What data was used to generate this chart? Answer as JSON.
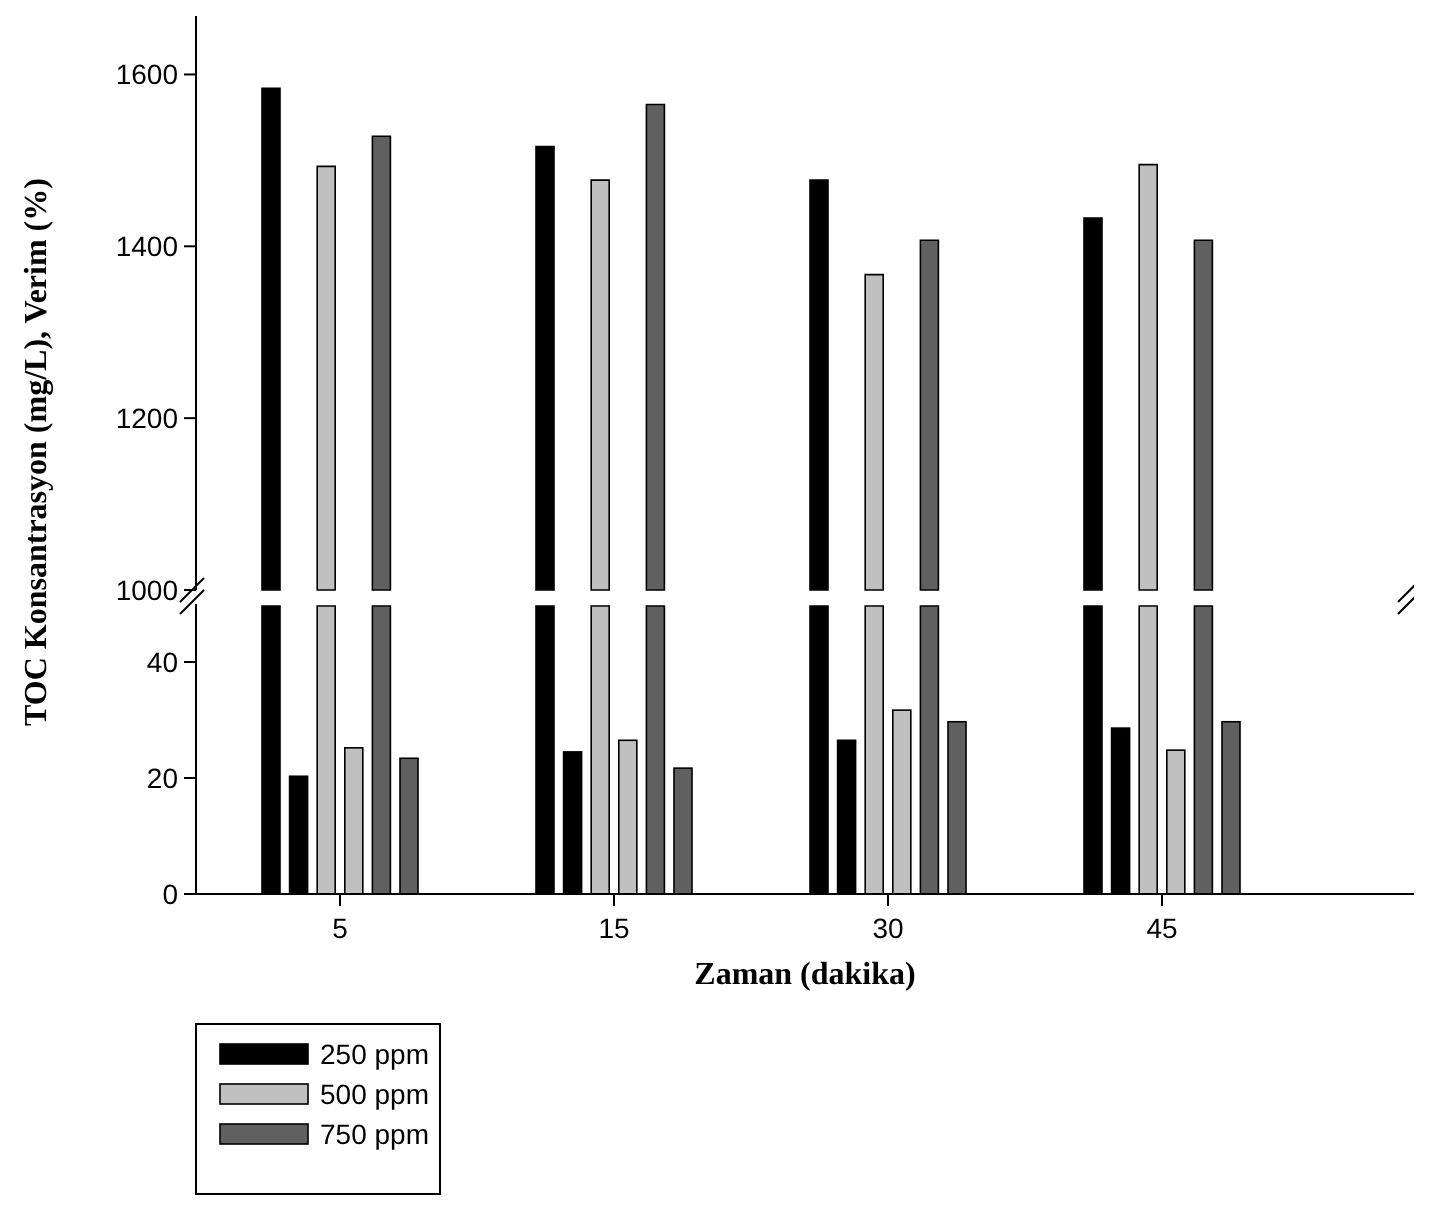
{
  "chart_data": [
    {
      "type": "bar",
      "ylabel": "TOC Konsantrasyon (mg/L), Verim (%)",
      "categories": [
        "5",
        "15",
        "30",
        "45"
      ],
      "ylim": [
        1000,
        1675
      ],
      "yticks": [
        1000,
        1200,
        1400,
        1600
      ],
      "tick_labels": "y",
      "legend": "bottom left",
      "series": [
        {
          "name": "250 ppm",
          "color": "#000000",
          "values": [
            1584,
            1516,
            1477,
            1433
          ]
        },
        {
          "name": "500 ppm",
          "color": "#c0c0c0",
          "values": [
            1493,
            1477,
            1367,
            1495
          ]
        },
        {
          "name": "750 ppm",
          "color": "#606060",
          "values": [
            1528,
            1565,
            1407,
            1407
          ]
        }
      ]
    },
    {
      "type": "bar",
      "xlabel": "Zaman (dakika)",
      "categories": [
        "5",
        "15",
        "30",
        "45"
      ],
      "ylim": [
        0,
        50
      ],
      "yticks": [
        0,
        20,
        40
      ],
      "series": [
        {
          "color": "#000000",
          "values": [
            20.3,
            24.5,
            26.5,
            28.6
          ]
        },
        {
          "color": "#c0c0c0",
          "values": [
            25.2,
            26.5,
            31.7,
            24.8
          ]
        },
        {
          "color": "#606060",
          "values": [
            23.4,
            21.7,
            29.7,
            29.7
          ]
        }
      ]
    }
  ]
}
